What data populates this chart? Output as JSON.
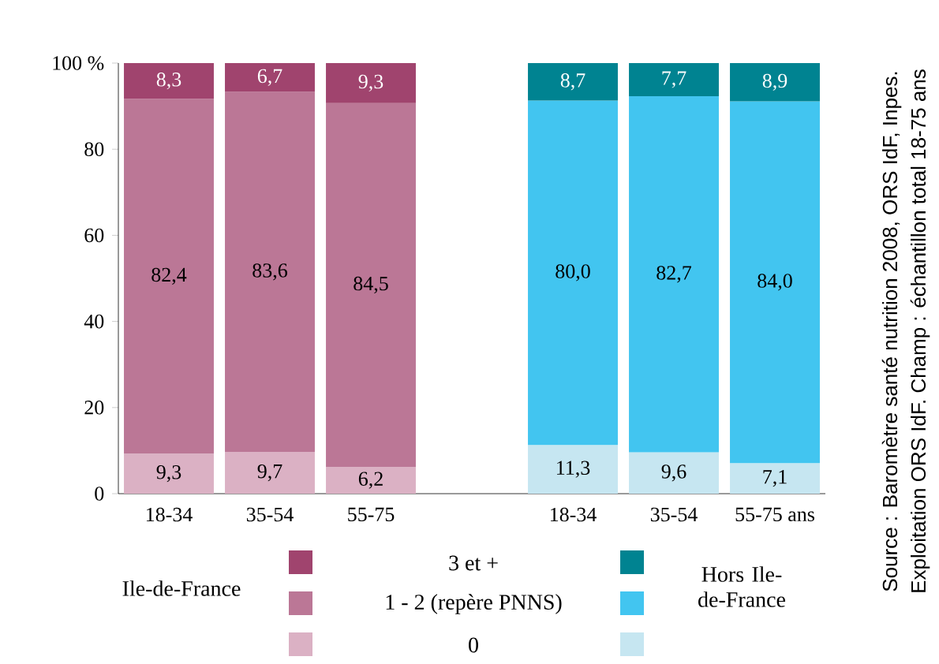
{
  "chart_data": {
    "type": "bar",
    "stacked": true,
    "categories": [
      "18-34",
      "35-54",
      "55-75",
      null,
      "18-34",
      "35-54",
      "55-75 ans"
    ],
    "series": [
      {
        "name": "0",
        "color": "#dbb1c4",
        "values": [
          9.3,
          9.7,
          6.2,
          null,
          null,
          null,
          null
        ],
        "value_labels": [
          "9,3",
          "9,7",
          "6,2",
          null,
          null,
          null,
          null
        ]
      },
      {
        "name": "1 - 2  (repère PNNS)",
        "color": "#bb7796",
        "values": [
          82.4,
          83.6,
          84.5,
          null,
          null,
          null,
          null
        ],
        "value_labels": [
          "82,4",
          "83,6",
          "84,5",
          null,
          null,
          null,
          null
        ]
      },
      {
        "name": "3 et +",
        "color": "#a0446e",
        "values": [
          8.3,
          6.7,
          9.3,
          null,
          null,
          null,
          null
        ],
        "value_labels": [
          "8,3",
          "6,7",
          "9,3",
          null,
          null,
          null,
          null
        ]
      },
      {
        "color": "#c6e6f1",
        "values": [
          null,
          null,
          null,
          null,
          11.3,
          9.6,
          7.1
        ],
        "value_labels": [
          null,
          null,
          null,
          null,
          "11,3",
          "9,6",
          "7,1"
        ]
      },
      {
        "color": "#42c5f0",
        "values": [
          null,
          null,
          null,
          null,
          80.0,
          82.7,
          84.0
        ],
        "value_labels": [
          null,
          null,
          null,
          null,
          "80,0",
          "82,7",
          "84,0"
        ]
      },
      {
        "color": "#008391",
        "values": [
          null,
          null,
          null,
          null,
          8.7,
          7.7,
          8.9
        ],
        "value_labels": [
          null,
          null,
          null,
          null,
          "8,7",
          "7,7",
          "8,9"
        ]
      }
    ],
    "ylim": [
      0,
      100
    ],
    "yticks": [
      0,
      20,
      40,
      60,
      80,
      {
        "value": 100,
        "label": "100 %"
      }
    ],
    "legend": "bottom",
    "legend_title": "Ile-de-France",
    "annotations": [
      "Hors Ile-de-France",
      "Source : Baromètre santé nutrition 2008, ORS IdF, Inpes.",
      "Exploitation ORS IdF. Champ : échantillon total 18-75 ans"
    ]
  }
}
